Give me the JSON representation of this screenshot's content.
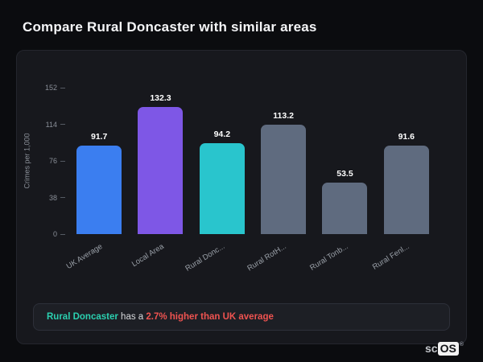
{
  "page_title": "Compare Rural Doncaster with similar areas",
  "chart_data": {
    "type": "bar",
    "title": "",
    "xlabel": "",
    "ylabel": "Crimes per 1,000",
    "ylim": [
      0,
      152
    ],
    "yticks": [
      0,
      38,
      76,
      114,
      152
    ],
    "grid": false,
    "legend": false,
    "categories": [
      "UK Average",
      "Local Area",
      "Rural Donc...",
      "Rural RotH...",
      "Rural Tonb...",
      "Rural Fenl..."
    ],
    "values": [
      91.7,
      132.3,
      94.2,
      113.2,
      53.5,
      91.6
    ],
    "bar_colors": [
      "#3b7ef0",
      "#7e57e6",
      "#29c5cd",
      "#5f6b7f",
      "#5f6b7f",
      "#5f6b7f"
    ]
  },
  "banner": {
    "highlight": "Rural Doncaster",
    "middle": " has a ",
    "stat": "2.7% higher than UK average",
    "highlight_color": "#2bd0b0",
    "stat_color": "#ef5350"
  },
  "watermark": {
    "prefix": "sc",
    "boxed": "OS",
    "registered": "®"
  }
}
